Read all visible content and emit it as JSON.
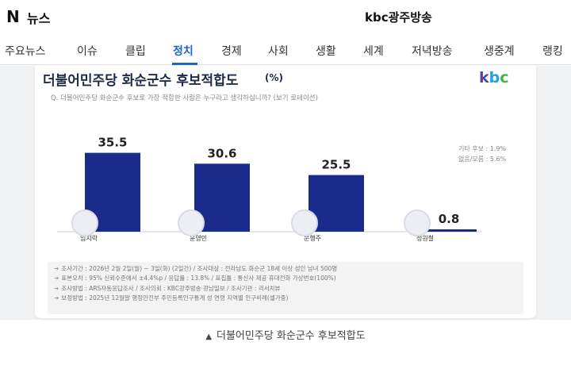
{
  "header": {
    "logo_n": "N",
    "logo_news": "뉴스",
    "outlet": "kbc광주방송"
  },
  "tabs": [
    {
      "label": "주요뉴스",
      "active": false
    },
    {
      "label": "이슈",
      "active": false
    },
    {
      "label": "클립",
      "active": false
    },
    {
      "label": "정치",
      "active": true
    },
    {
      "label": "경제",
      "active": false
    },
    {
      "label": "사회",
      "active": false
    },
    {
      "label": "생활",
      "active": false
    },
    {
      "label": "세계",
      "active": false
    },
    {
      "label": "저녁방송",
      "active": false
    },
    {
      "label": "생중계",
      "active": false
    },
    {
      "label": "랭킹",
      "active": false
    }
  ],
  "graphic": {
    "title": "더불어민주당 화순군수 후보적합도",
    "unit": "(%)",
    "brand": {
      "k": "k",
      "b": "b",
      "c": "c"
    },
    "question": "Q. 더불어민주당 화순군수 후보로 가장 적합한 사람은 누구라고 생각하십니까? (보기 로테이션)",
    "side_note": {
      "line1": "기타 후보 : 1.9%",
      "line2": "없음/모름 : 5.6%"
    },
    "method": [
      "조사기간 : 2026년 2월 2일(월) ~ 3일(화) (2일간)  / 조사대상 : 전라남도 화순군 18세 이상 성인 남녀 500명",
      "표본오차 : 95% 신뢰수준에서 ±4.4%p / 응답률 : 13.8% / 표집틀 : 통신사 제공 휴대전화 가상번호(100%)",
      "조사방법 : ARS자동응답조사 / 조사의뢰 : KBC광주방송·광남일보 / 조사기관 : 리서치뷰",
      "보정방법 : 2025년 12월말 행정안전부 주민등록인구통계 성 연령 지역별 인구비례(셀가중)"
    ]
  },
  "chart_data": {
    "type": "bar",
    "title": "더불어민주당 화순군수 후보적합도",
    "unit": "%",
    "categories": [
      "임지락",
      "윤영민",
      "문행주",
      "정원철"
    ],
    "values": [
      35.5,
      30.6,
      25.5,
      0.8
    ],
    "value_labels": [
      "35.5",
      "30.6",
      "25.5",
      "0.8"
    ],
    "bar_color": "#1a2b8c",
    "ylim": [
      0,
      40
    ],
    "grid": false,
    "notes": [
      "기타 후보 : 1.9%",
      "없음/모름 : 5.6%"
    ]
  },
  "caption": {
    "marker": "▲",
    "text": "더불어민주당 화순군수 후보적합도"
  },
  "colors": {
    "accent": "#1b66c9",
    "bar": "#1a2b8c",
    "title": "#1f2a44"
  }
}
